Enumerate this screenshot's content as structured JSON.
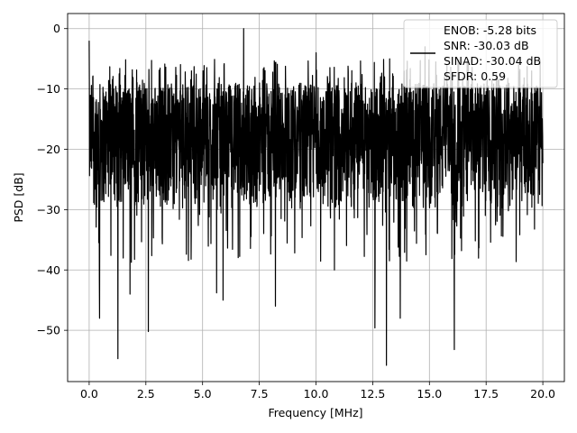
{
  "chart_data": {
    "type": "line",
    "title": "",
    "xlabel": "Frequency [MHz]",
    "ylabel": "PSD [dB]",
    "xlim": [
      -0.95,
      20.95
    ],
    "ylim": [
      -58.5,
      2.5
    ],
    "xticks": [
      0.0,
      2.5,
      5.0,
      7.5,
      10.0,
      12.5,
      15.0,
      17.5,
      20.0
    ],
    "xtick_labels": [
      "0.0",
      "2.5",
      "5.0",
      "7.5",
      "10.0",
      "12.5",
      "15.0",
      "17.5",
      "20.0"
    ],
    "yticks": [
      0,
      -10,
      -20,
      -30,
      -40,
      -50
    ],
    "ytick_labels": [
      "0",
      "−10",
      "−20",
      "−30",
      "−40",
      "−50"
    ],
    "grid": true,
    "legend_position": "top-right",
    "line_color": "#000000",
    "legend": [
      "ENOB: -5.28 bits",
      "SNR: -30.03 dB",
      "SINAD: -30.04 dB",
      "SFDR: 0.59"
    ],
    "series": [
      {
        "x_range": [
          0.0,
          20.0
        ],
        "noise_floor_range_db": [
          -30,
          -9
        ],
        "max_db": 0.0,
        "min_db": -55.8,
        "peaks": [
          {
            "x": 0.0,
            "y": -2.0
          },
          {
            "x": 6.8,
            "y": 0.0
          },
          {
            "x": 10.0,
            "y": -4.0
          },
          {
            "x": 14.8,
            "y": -3.0
          }
        ],
        "dips": [
          {
            "x": 0.45,
            "y": -42.0
          },
          {
            "x": 0.45,
            "y": -48.0
          },
          {
            "x": 1.25,
            "y": -54.7
          },
          {
            "x": 1.8,
            "y": -44.0
          },
          {
            "x": 2.6,
            "y": -50.2
          },
          {
            "x": 5.6,
            "y": -43.8
          },
          {
            "x": 5.9,
            "y": -45.0
          },
          {
            "x": 8.2,
            "y": -46.0
          },
          {
            "x": 10.8,
            "y": -40.0
          },
          {
            "x": 12.6,
            "y": -49.6
          },
          {
            "x": 13.1,
            "y": -55.8
          },
          {
            "x": 13.7,
            "y": -48.0
          },
          {
            "x": 16.1,
            "y": -53.2
          }
        ]
      }
    ]
  }
}
